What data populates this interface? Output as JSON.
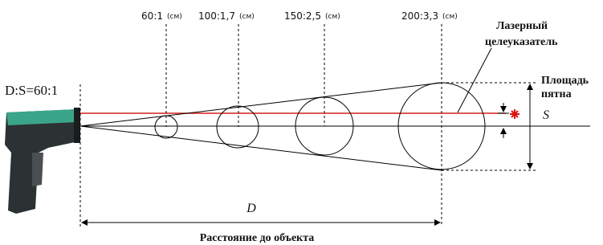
{
  "header": {
    "ratio_label": "D:S=60:1"
  },
  "distances": [
    {
      "ratio": "60:1",
      "unit": "(см)"
    },
    {
      "ratio": "100:1,7",
      "unit": "(см)"
    },
    {
      "ratio": "150:2,5",
      "unit": "(см)"
    },
    {
      "ratio": "200:3,3",
      "unit": "(см)"
    }
  ],
  "laser": {
    "lines": [
      "Лазерный",
      "целеуказатель"
    ]
  },
  "spot": {
    "lines": [
      "Площадь",
      "пятна"
    ],
    "symbol": "S"
  },
  "distance": {
    "symbol": "D",
    "caption": "Расстояние до объекта"
  }
}
